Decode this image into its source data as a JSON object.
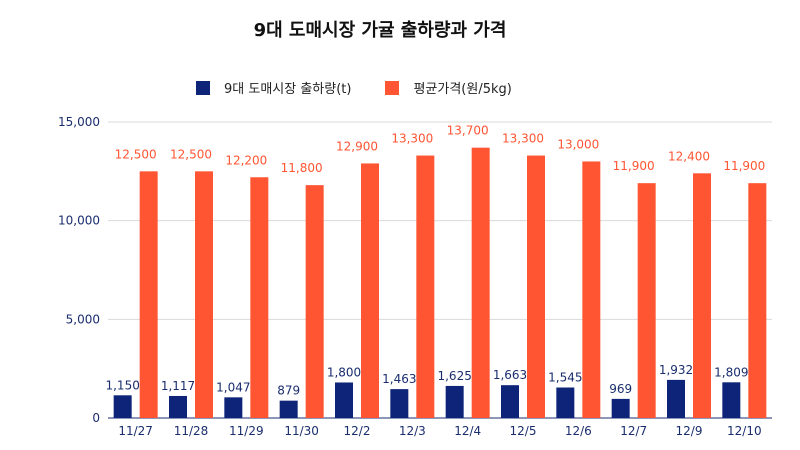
{
  "title": "9대 도매시장 가귤 출하량과 가격",
  "colors": {
    "shipment": "#0d2478",
    "price": "#ff5533",
    "value_label": "#ff5533",
    "axis_text": "#1a2e6e"
  },
  "chart_data": {
    "type": "bar",
    "title": "9대 도매시장 가귤 출하량과 가격",
    "xlabel": "",
    "ylabel": "",
    "ylim": [
      0,
      15000
    ],
    "yticks": [
      "0",
      "5,000",
      "10,000",
      "15,000"
    ],
    "ytick_values": [
      0,
      5000,
      10000,
      15000
    ],
    "grid": true,
    "legend": "top",
    "categories": [
      "11/27",
      "11/28",
      "11/29",
      "11/30",
      "12/2",
      "12/3",
      "12/4",
      "12/5",
      "12/6",
      "12/7",
      "12/9",
      "12/10"
    ],
    "series": [
      {
        "name": "9대 도매시장 출하량(t)",
        "color": "#0d2478",
        "values": [
          1150,
          1117,
          1047,
          879,
          1800,
          1463,
          1625,
          1663,
          1545,
          969,
          1932,
          1809
        ],
        "labels": [
          "1,150",
          "1,117",
          "1,047",
          "879",
          "1,800",
          "1,463",
          "1,625",
          "1,663",
          "1,545",
          "969",
          "1,932",
          "1,809"
        ]
      },
      {
        "name": "평균가격(원/5kg)",
        "color": "#ff5533",
        "values": [
          12500,
          12500,
          12200,
          11800,
          12900,
          13300,
          13700,
          13300,
          13000,
          11900,
          12400,
          11900
        ],
        "labels": [
          "12,500",
          "12,500",
          "12,200",
          "11,800",
          "12,900",
          "13,300",
          "13,700",
          "13,300",
          "13,000",
          "11,900",
          "12,400",
          "11,900"
        ]
      }
    ]
  }
}
